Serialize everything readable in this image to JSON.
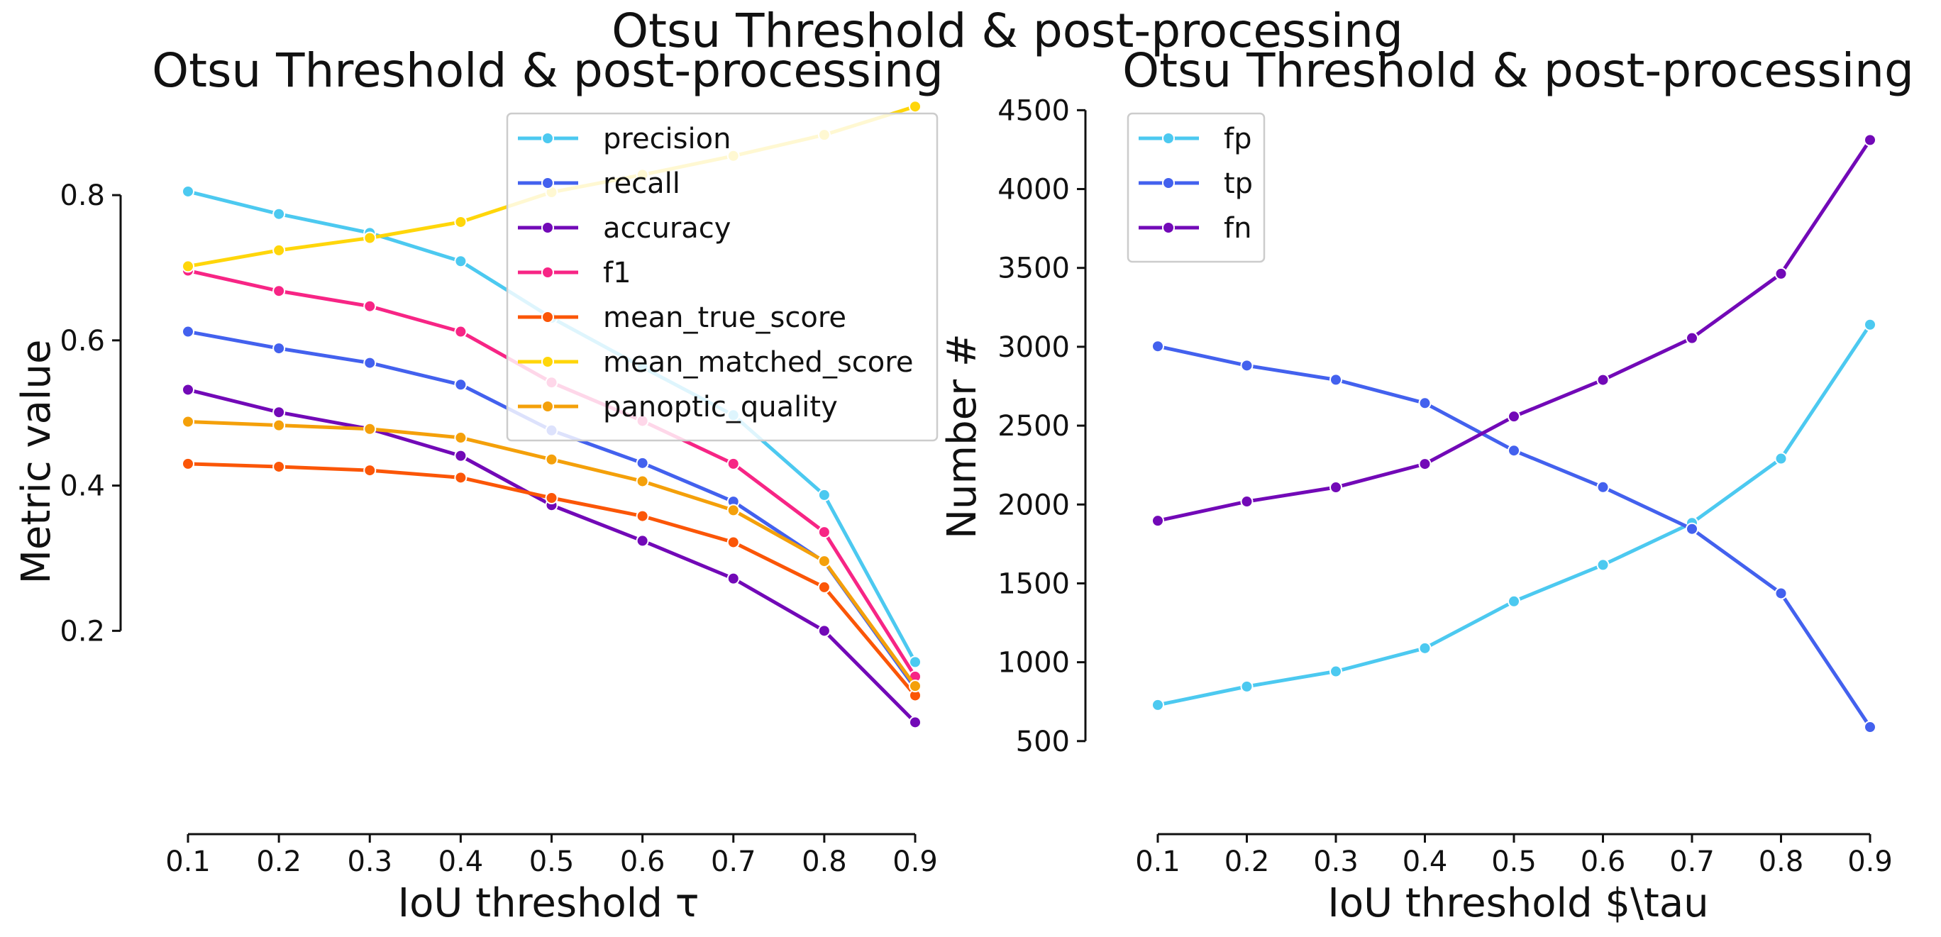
{
  "figure": {
    "suptitle": "Otsu Threshold & post-processing"
  },
  "chart_data": [
    {
      "type": "line",
      "title": "Otsu Threshold & post-processing",
      "xlabel": "IoU threshold τ",
      "ylabel": "Metric value",
      "x": [
        0.1,
        0.2,
        0.3,
        0.4,
        0.5,
        0.6,
        0.7,
        0.8,
        0.9
      ],
      "xticks": [
        "0.1",
        "0.2",
        "0.3",
        "0.4",
        "0.5",
        "0.6",
        "0.7",
        "0.8",
        "0.9"
      ],
      "yticks": [
        "0.2",
        "0.4",
        "0.6",
        "0.8"
      ],
      "yticks_values": [
        0.2,
        0.4,
        0.6,
        0.8
      ],
      "xlim": [
        0.1,
        0.9
      ],
      "ylim": [
        -0.08,
        0.93
      ],
      "grid": false,
      "legend_position": "top-right",
      "series": [
        {
          "name": "precision",
          "color": "#4cc9f0",
          "values": [
            0.805,
            0.774,
            0.748,
            0.709,
            0.631,
            0.563,
            0.497,
            0.387,
            0.157
          ]
        },
        {
          "name": "recall",
          "color": "#4361ee",
          "values": [
            0.612,
            0.589,
            0.569,
            0.539,
            0.476,
            0.431,
            0.378,
            0.295,
            0.121
          ]
        },
        {
          "name": "accuracy",
          "color": "#7209b7",
          "values": [
            0.532,
            0.501,
            0.478,
            0.441,
            0.373,
            0.324,
            0.272,
            0.2,
            0.074
          ]
        },
        {
          "name": "f1",
          "color": "#f72585",
          "values": [
            0.696,
            0.668,
            0.647,
            0.612,
            0.542,
            0.489,
            0.43,
            0.336,
            0.137
          ]
        },
        {
          "name": "mean_true_score",
          "color": "#fb5607",
          "values": [
            0.43,
            0.426,
            0.421,
            0.411,
            0.383,
            0.358,
            0.322,
            0.26,
            0.111
          ]
        },
        {
          "name": "mean_matched_score",
          "color": "#ffd60a",
          "values": [
            0.702,
            0.724,
            0.741,
            0.763,
            0.804,
            0.828,
            0.854,
            0.883,
            0.922
          ]
        },
        {
          "name": "panoptic_quality",
          "color": "#f4a00a",
          "values": [
            0.488,
            0.483,
            0.478,
            0.466,
            0.436,
            0.406,
            0.366,
            0.296,
            0.124
          ]
        }
      ]
    },
    {
      "type": "line",
      "title": "Otsu Threshold & post-processing",
      "xlabel": "IoU threshold $\\tau",
      "ylabel": "Number #",
      "x": [
        0.1,
        0.2,
        0.3,
        0.4,
        0.5,
        0.6,
        0.7,
        0.8,
        0.9
      ],
      "xticks": [
        "0.1",
        "0.2",
        "0.3",
        "0.4",
        "0.5",
        "0.6",
        "0.7",
        "0.8",
        "0.9"
      ],
      "yticks": [
        "500",
        "1000",
        "1500",
        "2000",
        "2500",
        "3000",
        "3500",
        "4000",
        "4500"
      ],
      "yticks_values": [
        500,
        1000,
        1500,
        2000,
        2500,
        3000,
        3500,
        4000,
        4500
      ],
      "xlim": [
        0.1,
        0.9
      ],
      "ylim": [
        -90,
        4560
      ],
      "grid": false,
      "legend_position": "top-left",
      "series": [
        {
          "name": "fp",
          "color": "#4cc9f0",
          "values": [
            729,
            846,
            942,
            1089,
            1386,
            1617,
            1883,
            2291,
            3140
          ]
        },
        {
          "name": "tp",
          "color": "#4361ee",
          "values": [
            3003,
            2881,
            2791,
            2643,
            2342,
            2110,
            1845,
            1437,
            589
          ]
        },
        {
          "name": "fn",
          "color": "#7209b7",
          "values": [
            1897,
            2019,
            2109,
            2257,
            2558,
            2790,
            3055,
            3463,
            4311
          ]
        }
      ]
    }
  ]
}
